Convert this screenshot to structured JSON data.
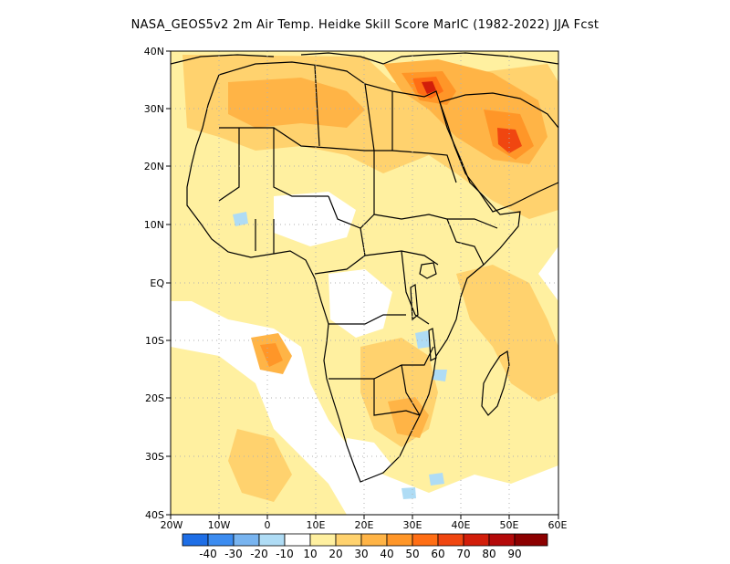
{
  "title": "NASA_GEOS5v2  2m Air Temp. Heidke Skill Score MarIC (1982-2022) JJA Fcst",
  "map": {
    "lat_labels": [
      "40N",
      "30N",
      "20N",
      "10N",
      "EQ",
      "10S",
      "20S",
      "30S",
      "40S"
    ],
    "lon_labels": [
      "20W",
      "10W",
      "0",
      "10E",
      "20E",
      "30E",
      "40E",
      "50E",
      "60E"
    ],
    "region": "Africa",
    "field": "Heidke skill score",
    "colors": {
      "background": "#ffffff",
      "land_fill": "#fffae6",
      "coast_line": "#000000",
      "grid_line": "#b0b0b0"
    }
  },
  "colorbar": {
    "labels": [
      "-40",
      "-30",
      "-20",
      "-10",
      "10",
      "20",
      "30",
      "40",
      "50",
      "60",
      "70",
      "80",
      "90"
    ],
    "colors": [
      "#1e6ee6",
      "#3c8cf0",
      "#78b4f0",
      "#afdcf5",
      "#ffffff",
      "#fff0a0",
      "#ffd26e",
      "#ffb446",
      "#ff9628",
      "#ff6e14",
      "#f04610",
      "#d21e0a",
      "#b40a0a",
      "#8c0000"
    ]
  }
}
